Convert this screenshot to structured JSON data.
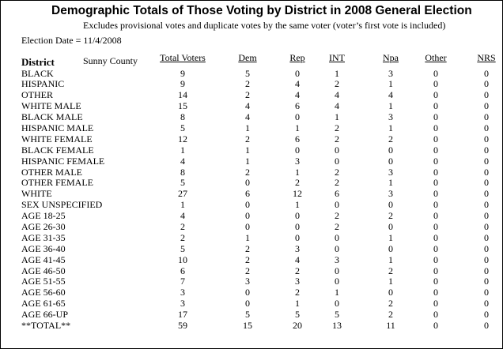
{
  "report": {
    "title": "Demographic Totals of Those Voting by District in  2008 General Election",
    "subtitle": "Excludes provisional votes and duplicate votes by the same voter (voter’s first vote is included)",
    "election_date": "Election Date = 11/4/2008",
    "district_label": "District",
    "county_label": "Sunny County"
  },
  "columns": [
    "Total Voters",
    "Dem",
    "Rep",
    "INT",
    "Npa",
    "Other",
    "NRS"
  ],
  "rows": [
    {
      "label": "BLACK",
      "values": [
        "9",
        "5",
        "0",
        "1",
        "3",
        "0",
        "0"
      ]
    },
    {
      "label": "HISPANIC",
      "values": [
        "9",
        "2",
        "4",
        "2",
        "1",
        "0",
        "0"
      ]
    },
    {
      "label": "OTHER",
      "values": [
        "14",
        "2",
        "4",
        "4",
        "4",
        "0",
        "0"
      ]
    },
    {
      "label": "WHITE MALE",
      "values": [
        "15",
        "4",
        "6",
        "4",
        "1",
        "0",
        "0"
      ]
    },
    {
      "label": "BLACK MALE",
      "values": [
        "8",
        "4",
        "0",
        "1",
        "3",
        "0",
        "0"
      ]
    },
    {
      "label": "HISPANIC MALE",
      "values": [
        "5",
        "1",
        "1",
        "2",
        "1",
        "0",
        "0"
      ]
    },
    {
      "label": "WHITE FEMALE",
      "values": [
        "12",
        "2",
        "6",
        "2",
        "2",
        "0",
        "0"
      ]
    },
    {
      "label": "BLACK FEMALE",
      "values": [
        "1",
        "1",
        "0",
        "0",
        "0",
        "0",
        "0"
      ]
    },
    {
      "label": "HISPANIC FEMALE",
      "values": [
        "4",
        "1",
        "3",
        "0",
        "0",
        "0",
        "0"
      ]
    },
    {
      "label": "OTHER MALE",
      "values": [
        "8",
        "2",
        "1",
        "2",
        "3",
        "0",
        "0"
      ]
    },
    {
      "label": "OTHER FEMALE",
      "values": [
        "5",
        "0",
        "2",
        "2",
        "1",
        "0",
        "0"
      ]
    },
    {
      "label": "WHITE",
      "values": [
        "27",
        "6",
        "12",
        "6",
        "3",
        "0",
        "0"
      ]
    },
    {
      "label": "SEX UNSPECIFIED",
      "values": [
        "1",
        "0",
        "1",
        "0",
        "0",
        "0",
        "0"
      ]
    },
    {
      "label": "AGE 18-25",
      "values": [
        "4",
        "0",
        "0",
        "2",
        "2",
        "0",
        "0"
      ]
    },
    {
      "label": "AGE 26-30",
      "values": [
        "2",
        "0",
        "0",
        "2",
        "0",
        "0",
        "0"
      ]
    },
    {
      "label": "AGE 31-35",
      "values": [
        "2",
        "1",
        "0",
        "0",
        "1",
        "0",
        "0"
      ]
    },
    {
      "label": "AGE 36-40",
      "values": [
        "5",
        "2",
        "3",
        "0",
        "0",
        "0",
        "0"
      ]
    },
    {
      "label": "AGE 41-45",
      "values": [
        "10",
        "2",
        "4",
        "3",
        "1",
        "0",
        "0"
      ]
    },
    {
      "label": "AGE 46-50",
      "values": [
        "6",
        "2",
        "2",
        "0",
        "2",
        "0",
        "0"
      ]
    },
    {
      "label": "AGE 51-55",
      "values": [
        "7",
        "3",
        "3",
        "0",
        "1",
        "0",
        "0"
      ]
    },
    {
      "label": "AGE 56-60",
      "values": [
        "3",
        "0",
        "2",
        "1",
        "0",
        "0",
        "0"
      ]
    },
    {
      "label": "AGE 61-65",
      "values": [
        "3",
        "0",
        "1",
        "0",
        "2",
        "0",
        "0"
      ]
    },
    {
      "label": "AGE 66-UP",
      "values": [
        "17",
        "5",
        "5",
        "5",
        "2",
        "0",
        "0"
      ]
    },
    {
      "label": "**TOTAL**",
      "values": [
        "59",
        "15",
        "20",
        "13",
        "11",
        "0",
        "0"
      ]
    }
  ]
}
